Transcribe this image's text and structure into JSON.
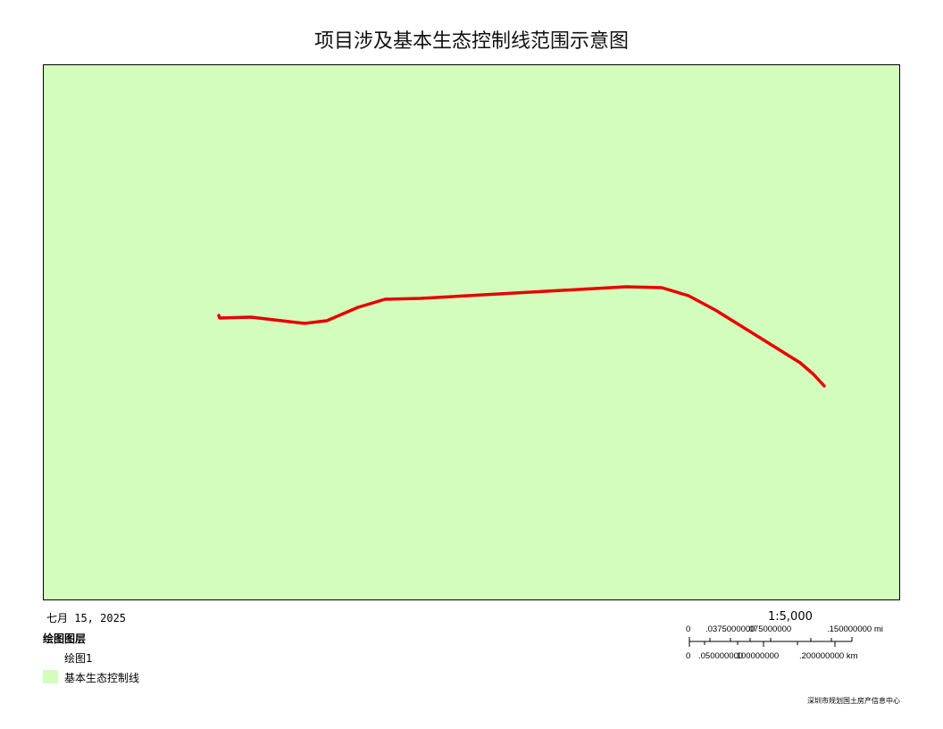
{
  "title": "项目涉及基本生态控制线范围示意图",
  "map": {
    "background_color": "#d3fdbc",
    "line_color": "#e60000"
  },
  "date": "七月 15, 2025",
  "legend": {
    "title": "绘图图层",
    "sublayer": "绘图1",
    "items": [
      {
        "label": "基本生态控制线",
        "color": "#d3fdbc"
      }
    ]
  },
  "scale": {
    "ratio": "1:5,000",
    "mi_labels": [
      "0",
      ".0375000000",
      ".075000000",
      ".150000000 mi"
    ],
    "km_labels": [
      "0",
      ".050000000",
      ".100000000",
      ".200000000 km"
    ]
  },
  "credit": "深圳市规划国土房产信息中心"
}
